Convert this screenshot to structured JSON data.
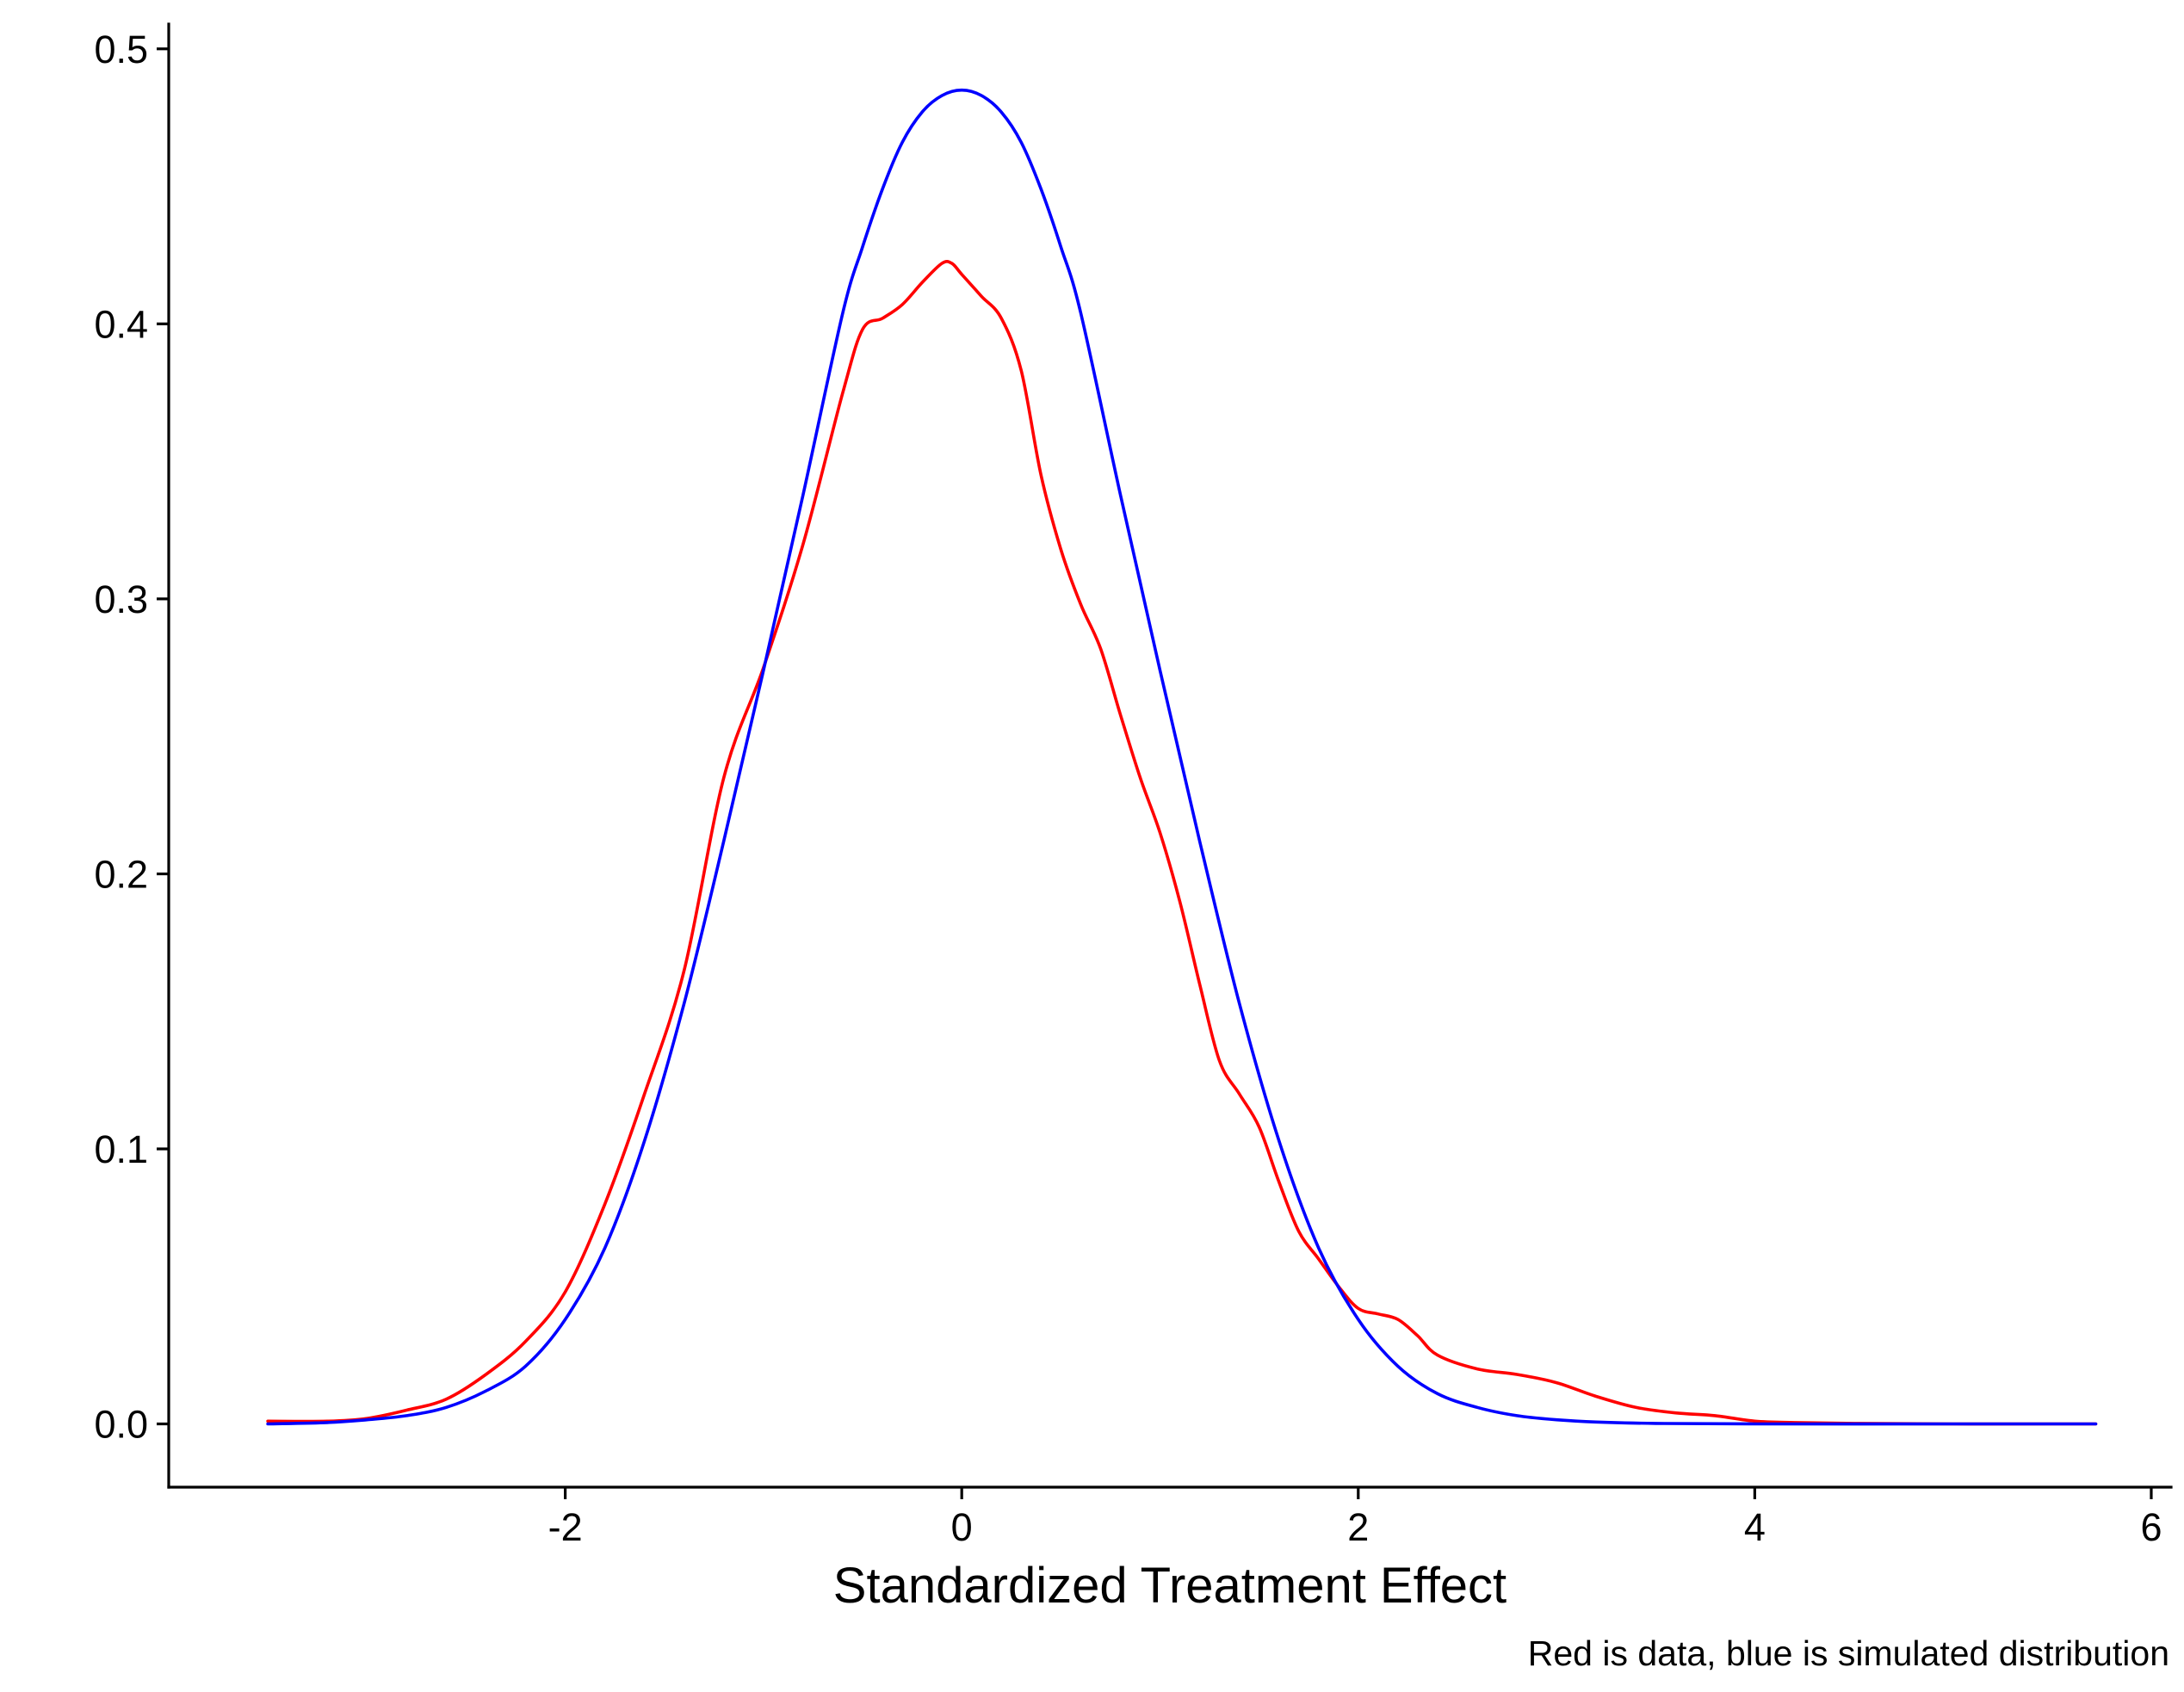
{
  "chart_data": {
    "type": "line",
    "title": "",
    "xlabel": "Standardized Treatment Effect",
    "ylabel": "",
    "caption": "Red is data, blue is simulated distribution",
    "xlim": [
      -4.0,
      6.1
    ],
    "ylim": [
      -0.023,
      0.509
    ],
    "x_ticks": [
      -2,
      0,
      2,
      4,
      6
    ],
    "x_tick_labels": [
      "-2",
      "0",
      "2",
      "4",
      "6"
    ],
    "y_ticks": [
      0.0,
      0.1,
      0.2,
      0.3,
      0.4,
      0.5
    ],
    "y_tick_labels": [
      "0.0",
      "0.1",
      "0.2",
      "0.3",
      "0.4",
      "0.5"
    ],
    "grid": false,
    "legend": "none",
    "series": [
      {
        "color": "#ff0000",
        "x": [
          -3.5,
          -3.2,
          -3.0,
          -2.8,
          -2.6,
          -2.4,
          -2.2,
          -2.0,
          -1.8,
          -1.6,
          -1.4,
          -1.2,
          -1.0,
          -0.8,
          -0.6,
          -0.5,
          -0.4,
          -0.3,
          -0.2,
          -0.1,
          -0.05,
          0.0,
          0.1,
          0.2,
          0.3,
          0.4,
          0.5,
          0.6,
          0.7,
          0.8,
          0.9,
          1.0,
          1.1,
          1.2,
          1.3,
          1.4,
          1.5,
          1.6,
          1.7,
          1.8,
          1.9,
          2.0,
          2.1,
          2.2,
          2.3,
          2.4,
          2.6,
          2.8,
          3.0,
          3.2,
          3.4,
          3.6,
          3.8,
          4.0,
          4.2,
          4.5,
          5.0,
          5.5,
          5.72
        ],
        "y": [
          0.001,
          0.001,
          0.002,
          0.005,
          0.009,
          0.018,
          0.03,
          0.048,
          0.08,
          0.12,
          0.165,
          0.235,
          0.275,
          0.32,
          0.375,
          0.398,
          0.402,
          0.407,
          0.415,
          0.422,
          0.422,
          0.418,
          0.41,
          0.402,
          0.383,
          0.345,
          0.318,
          0.298,
          0.282,
          0.258,
          0.235,
          0.215,
          0.19,
          0.16,
          0.132,
          0.12,
          0.108,
          0.088,
          0.07,
          0.06,
          0.05,
          0.042,
          0.04,
          0.038,
          0.032,
          0.025,
          0.02,
          0.018,
          0.015,
          0.01,
          0.006,
          0.004,
          0.003,
          0.001,
          0.0005,
          0.0002,
          0.0,
          0.0,
          0.0
        ]
      },
      {
        "color": "#0000ff",
        "x": [
          -3.5,
          -3.2,
          -3.0,
          -2.8,
          -2.6,
          -2.4,
          -2.2,
          -2.0,
          -1.8,
          -1.6,
          -1.4,
          -1.2,
          -1.0,
          -0.8,
          -0.6,
          -0.5,
          -0.4,
          -0.3,
          -0.2,
          -0.1,
          0.0,
          0.1,
          0.2,
          0.3,
          0.4,
          0.5,
          0.6,
          0.8,
          1.0,
          1.2,
          1.4,
          1.6,
          1.8,
          2.0,
          2.2,
          2.4,
          2.6,
          2.8,
          3.0,
          3.2,
          3.5,
          4.0,
          5.0,
          5.72
        ],
        "y": [
          0.0,
          0.0005,
          0.0015,
          0.003,
          0.006,
          0.012,
          0.021,
          0.038,
          0.064,
          0.103,
          0.153,
          0.212,
          0.274,
          0.338,
          0.404,
          0.428,
          0.449,
          0.466,
          0.477,
          0.483,
          0.485,
          0.483,
          0.477,
          0.466,
          0.449,
          0.428,
          0.404,
          0.338,
          0.274,
          0.212,
          0.153,
          0.103,
          0.064,
          0.038,
          0.021,
          0.011,
          0.006,
          0.003,
          0.0015,
          0.0007,
          0.0002,
          0.0,
          0.0,
          0.0
        ]
      }
    ]
  }
}
